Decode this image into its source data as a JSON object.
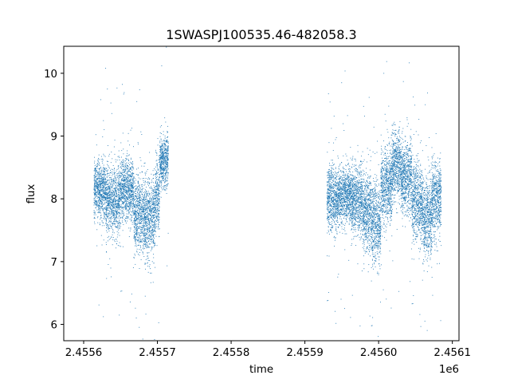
{
  "chart_data": {
    "type": "scatter",
    "title": "1SWASPJ100535.46-482058.3",
    "xlabel": "time",
    "ylabel": "flux",
    "x_offset_label": "1e6",
    "xlim": [
      2455573,
      2456109
    ],
    "ylim": [
      5.74,
      10.43
    ],
    "x_ticks": [
      2455600,
      2455700,
      2455800,
      2455900,
      2456000,
      2456100
    ],
    "x_tick_labels": [
      "2.4556",
      "2.4557",
      "2.4558",
      "2.4559",
      "2.4560",
      "2.4561"
    ],
    "y_ticks": [
      6,
      7,
      8,
      9,
      10
    ],
    "y_tick_labels": [
      "6",
      "7",
      "8",
      "9",
      "10"
    ],
    "grid": false,
    "point_color": "#1f77b4",
    "segments": [
      {
        "x_start": 2455614,
        "x_end": 2455630,
        "mean_flux": 8.15,
        "spread": 0.22
      },
      {
        "x_start": 2455630,
        "x_end": 2455650,
        "mean_flux": 7.95,
        "spread": 0.28
      },
      {
        "x_start": 2455650,
        "x_end": 2455668,
        "mean_flux": 8.15,
        "spread": 0.25
      },
      {
        "x_start": 2455668,
        "x_end": 2455683,
        "mean_flux": 7.75,
        "spread": 0.3
      },
      {
        "x_start": 2455683,
        "x_end": 2455697,
        "mean_flux": 7.7,
        "spread": 0.32
      },
      {
        "x_start": 2455697,
        "x_end": 2455703,
        "mean_flux": 8.05,
        "spread": 0.3
      },
      {
        "x_start": 2455703,
        "x_end": 2455715,
        "mean_flux": 8.6,
        "spread": 0.22
      },
      {
        "x_start": 2455930,
        "x_end": 2455945,
        "mean_flux": 8.0,
        "spread": 0.25
      },
      {
        "x_start": 2455945,
        "x_end": 2455963,
        "mean_flux": 8.05,
        "spread": 0.22
      },
      {
        "x_start": 2455963,
        "x_end": 2455978,
        "mean_flux": 8.0,
        "spread": 0.28
      },
      {
        "x_start": 2455978,
        "x_end": 2455990,
        "mean_flux": 7.8,
        "spread": 0.32
      },
      {
        "x_start": 2455990,
        "x_end": 2456003,
        "mean_flux": 7.6,
        "spread": 0.32
      },
      {
        "x_start": 2456003,
        "x_end": 2456018,
        "mean_flux": 8.2,
        "spread": 0.3
      },
      {
        "x_start": 2456018,
        "x_end": 2456030,
        "mean_flux": 8.55,
        "spread": 0.28
      },
      {
        "x_start": 2456030,
        "x_end": 2456045,
        "mean_flux": 8.35,
        "spread": 0.3
      },
      {
        "x_start": 2456045,
        "x_end": 2456060,
        "mean_flux": 7.95,
        "spread": 0.3
      },
      {
        "x_start": 2456060,
        "x_end": 2456072,
        "mean_flux": 7.7,
        "spread": 0.32
      },
      {
        "x_start": 2456072,
        "x_end": 2456085,
        "mean_flux": 8.0,
        "spread": 0.3
      }
    ]
  }
}
